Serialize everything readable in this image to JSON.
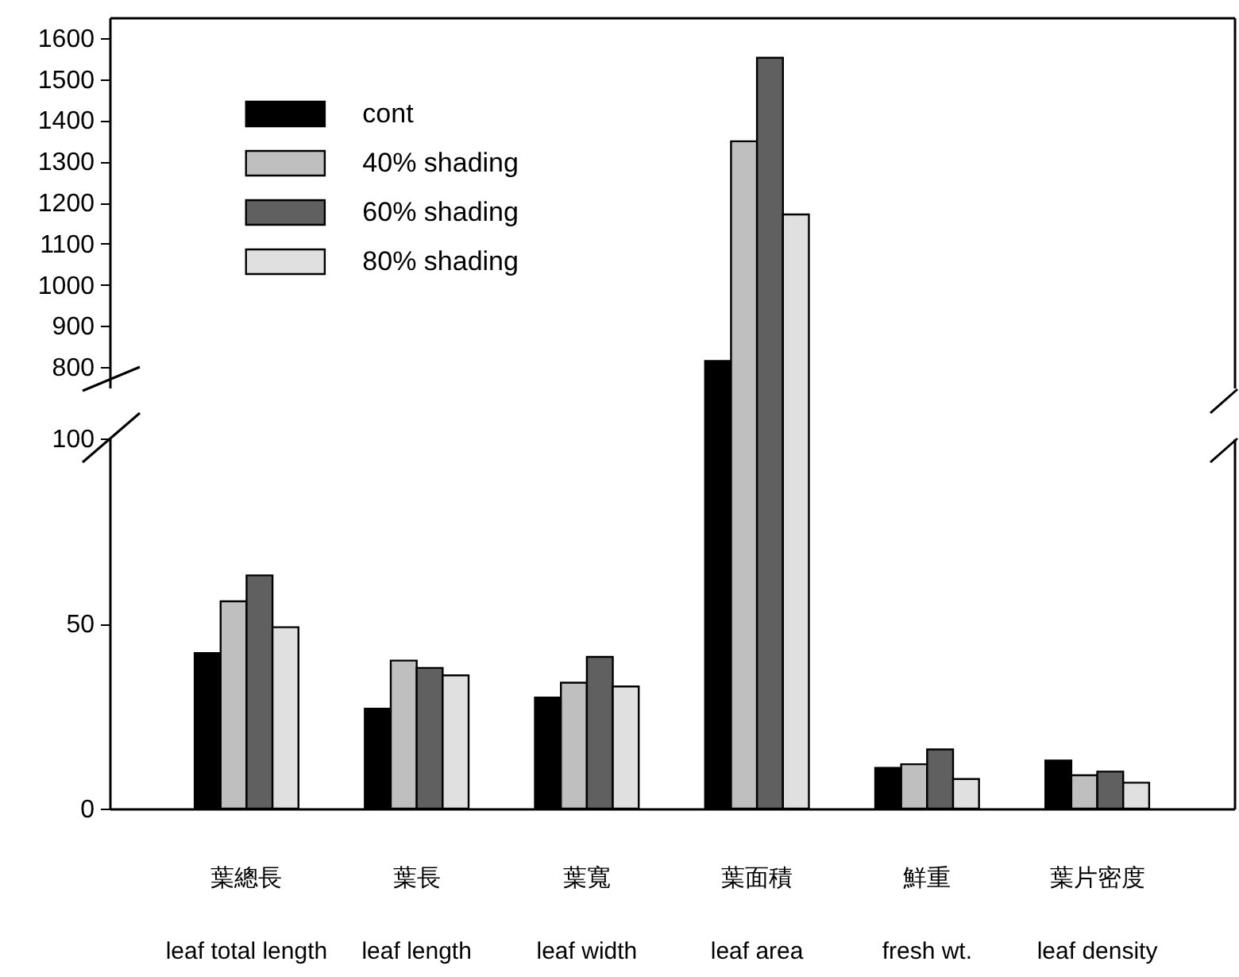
{
  "chart_data": [
    {
      "type": "bar",
      "categories": [
        null,
        null,
        null,
        null,
        null,
        null
      ],
      "series": [
        {
          "name": "cont",
          "color": "#000000",
          "values": [
            null,
            null,
            null,
            815,
            null,
            null
          ]
        },
        {
          "name": "40% shading",
          "color": "#bfbfbf",
          "values": [
            null,
            null,
            null,
            1349,
            null,
            null
          ]
        },
        {
          "name": "60% shading",
          "color": "#606060",
          "values": [
            null,
            null,
            null,
            1552,
            null,
            null
          ]
        },
        {
          "name": "80% shading",
          "color": "#e0e0e0",
          "values": [
            null,
            null,
            null,
            1171,
            null,
            null
          ]
        }
      ],
      "ylim": [
        750,
        1650
      ],
      "yticks": [
        800,
        900,
        1000,
        1100,
        1200,
        1300,
        1400,
        1500,
        1600
      ],
      "tick_labels": "y",
      "legend": "top left",
      "grid": false
    },
    {
      "type": "bar",
      "categories": [
        "葉總長\nleaf total length",
        "葉長\nleaf length",
        "葉寬\nleaf width",
        "葉面積\nleaf area",
        "鮮重\nfresh wt.",
        "葉片密度\nleaf density"
      ],
      "series": [
        {
          "color": "#000000",
          "values": [
            42,
            27,
            30,
            null,
            11,
            13
          ]
        },
        {
          "color": "#bfbfbf",
          "values": [
            56,
            40,
            34,
            null,
            12,
            9
          ]
        },
        {
          "color": "#606060",
          "values": [
            63,
            38,
            41,
            null,
            16,
            10
          ]
        },
        {
          "color": "#e0e0e0",
          "values": [
            49,
            36,
            33,
            null,
            8,
            7
          ]
        }
      ],
      "ylim": [
        0,
        100
      ],
      "yticks": [
        0,
        50,
        100
      ],
      "grid": false
    }
  ]
}
